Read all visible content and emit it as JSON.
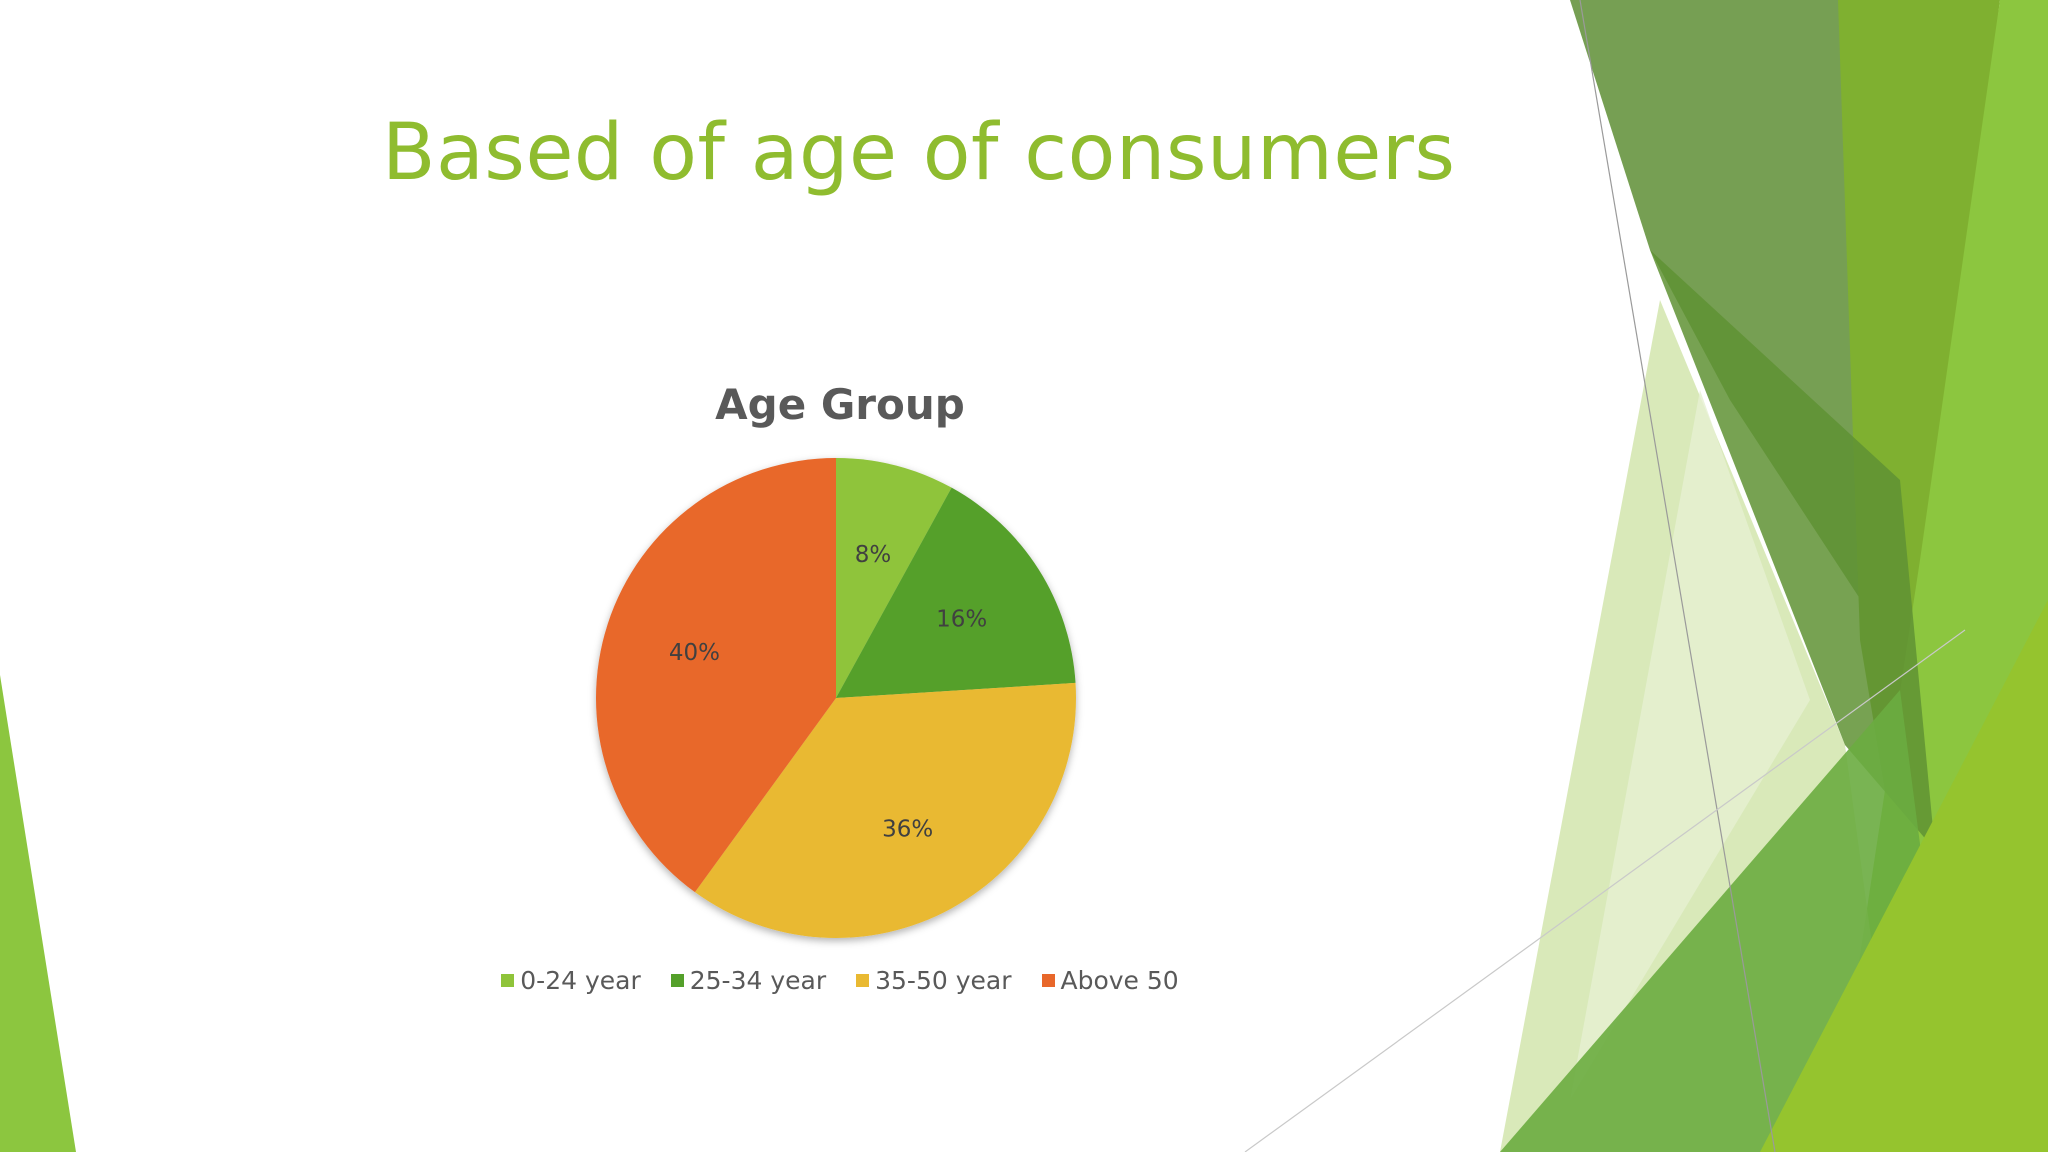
{
  "slide": {
    "title": "Based of age of consumers",
    "accent_color": "#8fbc2f"
  },
  "chart_data": {
    "type": "pie",
    "title": "Age Group",
    "categories": [
      "0-24 year",
      "25-34 year",
      "35-50 year",
      "Above 50"
    ],
    "values": [
      8,
      16,
      36,
      40
    ],
    "data_labels": [
      "8%",
      "16%",
      "36%",
      "40%"
    ],
    "colors": [
      "#8fc43a",
      "#54a02a",
      "#e9b932",
      "#e8672a"
    ],
    "legend_position": "bottom"
  }
}
